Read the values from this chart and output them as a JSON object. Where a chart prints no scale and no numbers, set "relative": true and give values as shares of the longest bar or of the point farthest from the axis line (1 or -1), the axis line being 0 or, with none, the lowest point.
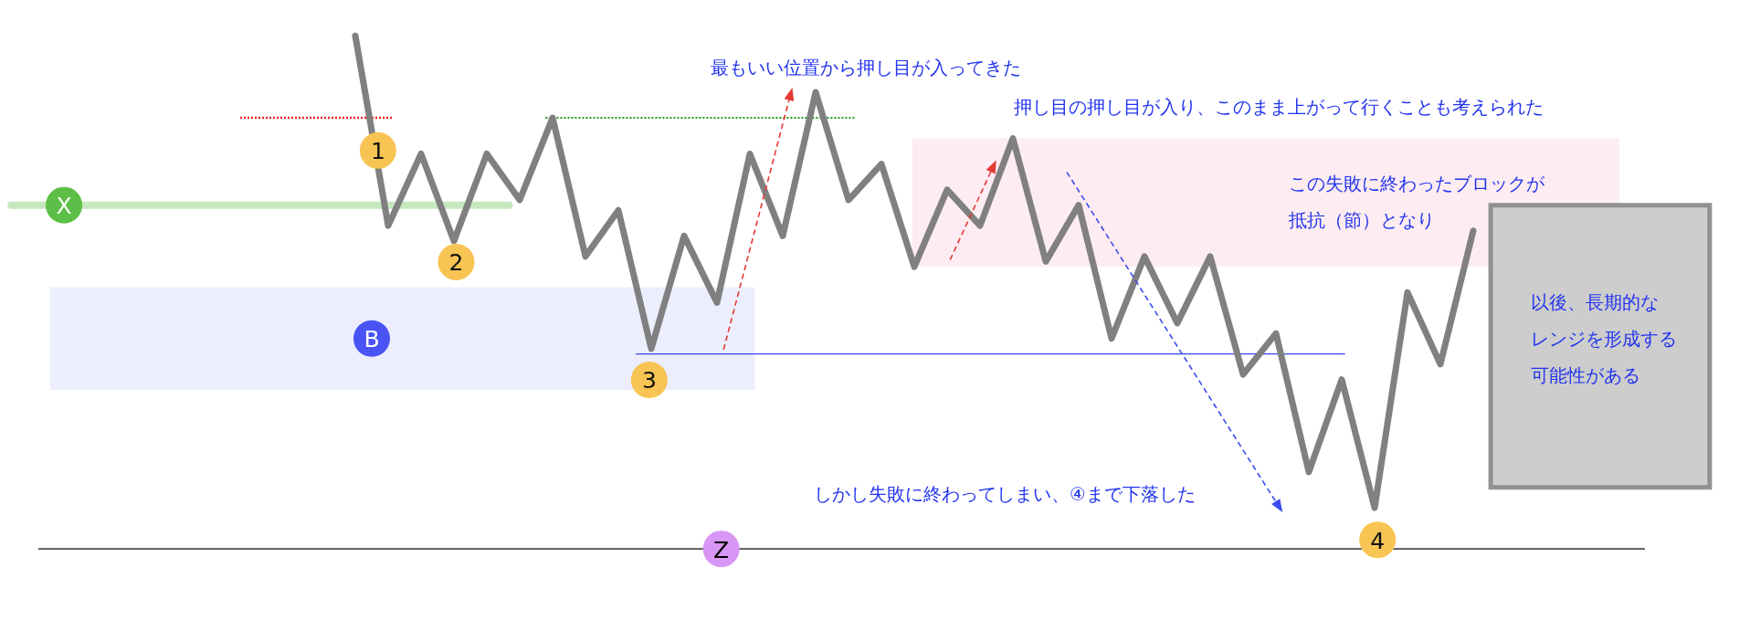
{
  "chart_data": {
    "type": "line",
    "relative": true,
    "categories": [
      null,
      null,
      null,
      null,
      null,
      null,
      null,
      null,
      null,
      null,
      null,
      null,
      null,
      null,
      null,
      null,
      null,
      null,
      null,
      null,
      null,
      null,
      null,
      null,
      null,
      null,
      null,
      null,
      null,
      null,
      null,
      null,
      null,
      null,
      null,
      null,
      null,
      null,
      null,
      null,
      null,
      null,
      null,
      null,
      null,
      null,
      null,
      null,
      null,
      null,
      null,
      null,
      null
    ],
    "series": [
      {
        "color": "#808080",
        "values": [
          null,
          null,
          null,
          null,
          null,
          null,
          null,
          null,
          null,
          null,
          1,
          0.63,
          0.77,
          0.6,
          0.77,
          0.68,
          0.84,
          0.57,
          0.66,
          0.39,
          0.61,
          0.48,
          0.77,
          0.61,
          0.89,
          0.68,
          0.75,
          0.55,
          0.7,
          0.63,
          0.8,
          0.56,
          0.67,
          0.41,
          0.57,
          0.44,
          0.57,
          0.34,
          0.42,
          0.15,
          0.33,
          0.08,
          0.5,
          0.36,
          0.62,
          null,
          null,
          null,
          null,
          null,
          null,
          null,
          null
        ]
      }
    ],
    "ref_lines": [
      {
        "axis": "y",
        "value": 0.67,
        "label": "X",
        "color": "#c6e8bf",
        "line_style": "solid"
      },
      {
        "axis": "y",
        "value": 0.84,
        "color": "#e8262a",
        "line_style": "dotted"
      },
      {
        "axis": "y",
        "value": 0.84,
        "color": "#1f9a1f",
        "line_style": "dotted"
      },
      {
        "axis": "y",
        "value": 0.38,
        "color": "#3344ee",
        "line_style": "solid"
      },
      {
        "axis": "y",
        "value": 0,
        "label": "Z",
        "color": "#4d4d4d",
        "line_style": "solid"
      }
    ],
    "bands": [
      {
        "axis": "y",
        "from": 0.31,
        "to": 0.51,
        "label": "B",
        "color": "#eceefd"
      },
      {
        "axis": "y",
        "from": 0.55,
        "to": 0.8,
        "color": "#fdecf1"
      },
      {
        "axis": "y",
        "from": 0.12,
        "to": 0.67,
        "color": "#c9c9c9"
      }
    ],
    "annotations": [
      "最もいい位置から押し目が入ってきた",
      "押し目の押し目が入り、このまま上がって行くことも考えられた",
      "この失敗に終わったブロックが",
      "抵抗（節）となり",
      "以後、長期的な",
      "レンジを形成する",
      "可能性がある",
      "しかし失敗に終わってしまい、④まで下落した",
      {
        "text": "1",
        "y": 0.78
      },
      {
        "text": "2",
        "y": 0.6
      },
      {
        "text": "3",
        "y": 0.39
      },
      {
        "text": "4",
        "y": 0.08
      }
    ],
    "marker": "none",
    "line_style": "solid"
  }
}
